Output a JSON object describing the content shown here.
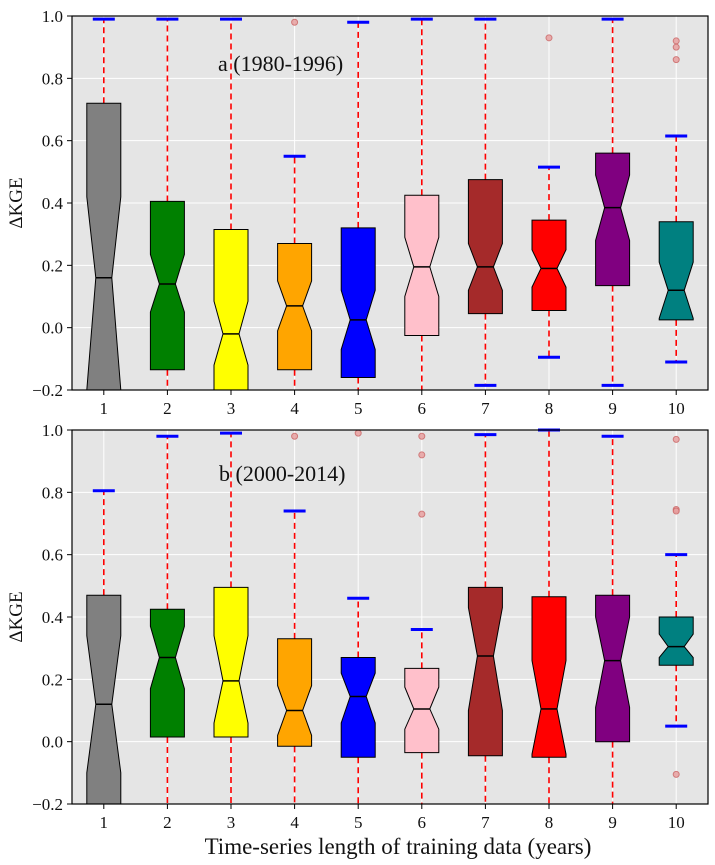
{
  "chart_data": [
    {
      "type": "boxplot",
      "panel_label": "a (1980-1996)",
      "ylabel": "ΔKGE",
      "xlabel": "",
      "ylim": [
        -0.2,
        1.0
      ],
      "yticks": [
        "−0.2",
        "0.0",
        "0.2",
        "0.4",
        "0.6",
        "0.8",
        "1.0"
      ],
      "ytick_values": [
        -0.2,
        0.0,
        0.2,
        0.4,
        0.6,
        0.8,
        1.0
      ],
      "grid": true,
      "notched": true,
      "categories": [
        "1",
        "2",
        "3",
        "4",
        "5",
        "6",
        "7",
        "8",
        "9",
        "10"
      ],
      "boxes": [
        {
          "q1": -0.2,
          "median": 0.16,
          "q3": 0.72,
          "whisker_low": -0.2,
          "whisker_high": 0.99,
          "notch_low": -0.2,
          "notch_high": 0.42,
          "outliers": [],
          "color": "#808080"
        },
        {
          "q1": -0.135,
          "median": 0.14,
          "q3": 0.405,
          "whisker_low": -0.2,
          "whisker_high": 0.99,
          "notch_low": 0.05,
          "notch_high": 0.235,
          "outliers": [],
          "color": "#008000"
        },
        {
          "q1": -0.2,
          "median": -0.02,
          "q3": 0.315,
          "whisker_low": -0.2,
          "whisker_high": 0.99,
          "notch_low": -0.12,
          "notch_high": 0.085,
          "outliers": [],
          "color": "#ffff00"
        },
        {
          "q1": -0.135,
          "median": 0.07,
          "q3": 0.27,
          "whisker_low": -0.2,
          "whisker_high": 0.55,
          "notch_low": -0.01,
          "notch_high": 0.15,
          "outliers": [
            0.98
          ],
          "color": "#ffa500"
        },
        {
          "q1": -0.16,
          "median": 0.025,
          "q3": 0.32,
          "whisker_low": -0.2,
          "whisker_high": 0.98,
          "notch_low": -0.07,
          "notch_high": 0.12,
          "outliers": [],
          "color": "#0000ff"
        },
        {
          "q1": -0.025,
          "median": 0.195,
          "q3": 0.425,
          "whisker_low": -0.2,
          "whisker_high": 0.99,
          "notch_low": 0.1,
          "notch_high": 0.29,
          "outliers": [],
          "color": "#ffc0cb"
        },
        {
          "q1": 0.045,
          "median": 0.195,
          "q3": 0.475,
          "whisker_low": -0.185,
          "whisker_high": 0.99,
          "notch_low": 0.12,
          "notch_high": 0.27,
          "outliers": [],
          "color": "#a52a2a"
        },
        {
          "q1": 0.055,
          "median": 0.19,
          "q3": 0.345,
          "whisker_low": -0.095,
          "whisker_high": 0.515,
          "notch_low": 0.13,
          "notch_high": 0.25,
          "outliers": [
            0.93
          ],
          "color": "#ff0000"
        },
        {
          "q1": 0.135,
          "median": 0.385,
          "q3": 0.56,
          "whisker_low": -0.185,
          "whisker_high": 0.99,
          "notch_low": 0.28,
          "notch_high": 0.49,
          "outliers": [],
          "color": "#800080"
        },
        {
          "q1": 0.025,
          "median": 0.12,
          "q3": 0.34,
          "whisker_low": -0.11,
          "whisker_high": 0.615,
          "notch_low": 0.03,
          "notch_high": 0.21,
          "outliers": [
            0.92,
            0.9,
            0.86
          ],
          "color": "#008080"
        }
      ]
    },
    {
      "type": "boxplot",
      "panel_label": "b (2000-2014)",
      "ylabel": "ΔKGE",
      "xlabel": "Time-series length of training data (years)",
      "ylim": [
        -0.2,
        1.0
      ],
      "yticks": [
        "−0.2",
        "0.0",
        "0.2",
        "0.4",
        "0.6",
        "0.8",
        "1.0"
      ],
      "ytick_values": [
        -0.2,
        0.0,
        0.2,
        0.4,
        0.6,
        0.8,
        1.0
      ],
      "grid": true,
      "notched": true,
      "categories": [
        "1",
        "2",
        "3",
        "4",
        "5",
        "6",
        "7",
        "8",
        "9",
        "10"
      ],
      "boxes": [
        {
          "q1": -0.2,
          "median": 0.12,
          "q3": 0.47,
          "whisker_low": -0.2,
          "whisker_high": 0.805,
          "notch_low": -0.1,
          "notch_high": 0.34,
          "outliers": [],
          "color": "#808080"
        },
        {
          "q1": 0.015,
          "median": 0.27,
          "q3": 0.425,
          "whisker_low": -0.2,
          "whisker_high": 0.98,
          "notch_low": 0.17,
          "notch_high": 0.37,
          "outliers": [],
          "color": "#008000"
        },
        {
          "q1": 0.015,
          "median": 0.195,
          "q3": 0.495,
          "whisker_low": -0.2,
          "whisker_high": 0.99,
          "notch_low": 0.06,
          "notch_high": 0.34,
          "outliers": [],
          "color": "#ffff00"
        },
        {
          "q1": -0.015,
          "median": 0.1,
          "q3": 0.33,
          "whisker_low": -0.2,
          "whisker_high": 0.74,
          "notch_low": 0.02,
          "notch_high": 0.18,
          "outliers": [
            0.98
          ],
          "color": "#ffa500"
        },
        {
          "q1": -0.05,
          "median": 0.145,
          "q3": 0.27,
          "whisker_low": -0.2,
          "whisker_high": 0.46,
          "notch_low": 0.06,
          "notch_high": 0.22,
          "outliers": [
            0.99
          ],
          "color": "#0000ff"
        },
        {
          "q1": -0.035,
          "median": 0.105,
          "q3": 0.235,
          "whisker_low": -0.2,
          "whisker_high": 0.36,
          "notch_low": 0.04,
          "notch_high": 0.175,
          "outliers": [
            0.98,
            0.92,
            0.73
          ],
          "color": "#ffc0cb"
        },
        {
          "q1": -0.045,
          "median": 0.275,
          "q3": 0.495,
          "whisker_low": -0.2,
          "whisker_high": 0.985,
          "notch_low": 0.1,
          "notch_high": 0.43,
          "outliers": [],
          "color": "#a52a2a"
        },
        {
          "q1": -0.05,
          "median": 0.105,
          "q3": 0.465,
          "whisker_low": -0.2,
          "whisker_high": 1.0,
          "notch_low": -0.04,
          "notch_high": 0.26,
          "outliers": [],
          "color": "#ff0000"
        },
        {
          "q1": 0.0,
          "median": 0.26,
          "q3": 0.47,
          "whisker_low": -0.2,
          "whisker_high": 0.98,
          "notch_low": 0.11,
          "notch_high": 0.4,
          "outliers": [],
          "color": "#800080"
        },
        {
          "q1": 0.245,
          "median": 0.305,
          "q3": 0.4,
          "whisker_low": 0.05,
          "whisker_high": 0.6,
          "notch_low": 0.27,
          "notch_high": 0.345,
          "outliers": [
            0.97,
            0.745,
            0.74,
            -0.105
          ],
          "color": "#008080"
        }
      ]
    }
  ]
}
